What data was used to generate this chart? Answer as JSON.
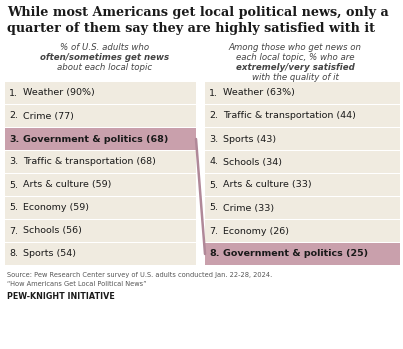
{
  "title_line1": "While most Americans get local political news, only a",
  "title_line2": "quarter of them say they are highly satisfied with it",
  "left_header": [
    "% of U.S. adults who",
    "often/sometimes get news",
    "about each local topic"
  ],
  "left_header_bold_word": "often/sometimes",
  "right_header": [
    "Among those who get news on",
    "each local topic, % who are",
    "extremely/very satisfied",
    "with the quality of it"
  ],
  "right_header_bold_word": "extremely/very satisfied",
  "left_items": [
    {
      "rank": "1.",
      "text": "Weather (90%)",
      "highlight": false
    },
    {
      "rank": "2.",
      "text": "Crime (77)",
      "highlight": false
    },
    {
      "rank": "3.",
      "text": "Government & politics (68)",
      "highlight": true
    },
    {
      "rank": "3.",
      "text": "Traffic & transportation (68)",
      "highlight": false
    },
    {
      "rank": "5.",
      "text": "Arts & culture (59)",
      "highlight": false
    },
    {
      "rank": "5.",
      "text": "Economy (59)",
      "highlight": false
    },
    {
      "rank": "7.",
      "text": "Schools (56)",
      "highlight": false
    },
    {
      "rank": "8.",
      "text": "Sports (54)",
      "highlight": false
    }
  ],
  "right_items": [
    {
      "rank": "1.",
      "text": "Weather (63%)",
      "highlight": false
    },
    {
      "rank": "2.",
      "text": "Traffic & transportation (44)",
      "highlight": false
    },
    {
      "rank": "3.",
      "text": "Sports (43)",
      "highlight": false
    },
    {
      "rank": "4.",
      "text": "Schools (34)",
      "highlight": false
    },
    {
      "rank": "5.",
      "text": "Arts & culture (33)",
      "highlight": false
    },
    {
      "rank": "5.",
      "text": "Crime (33)",
      "highlight": false
    },
    {
      "rank": "7.",
      "text": "Economy (26)",
      "highlight": false
    },
    {
      "rank": "8.",
      "text": "Government & politics (25)",
      "highlight": true
    }
  ],
  "source_line1": "Source: Pew Research Center survey of U.S. adults conducted Jan. 22-28, 2024.",
  "source_line2": "“How Americans Get Local Political News”",
  "footer": "PEW-KNIGHT INITIATIVE",
  "highlight_color": "#c9a0ac",
  "row_bg_color": "#f0ebe0",
  "white_bg": "#ffffff",
  "line_color": "#b08898",
  "text_color": "#1a1a1a",
  "source_color": "#555555"
}
